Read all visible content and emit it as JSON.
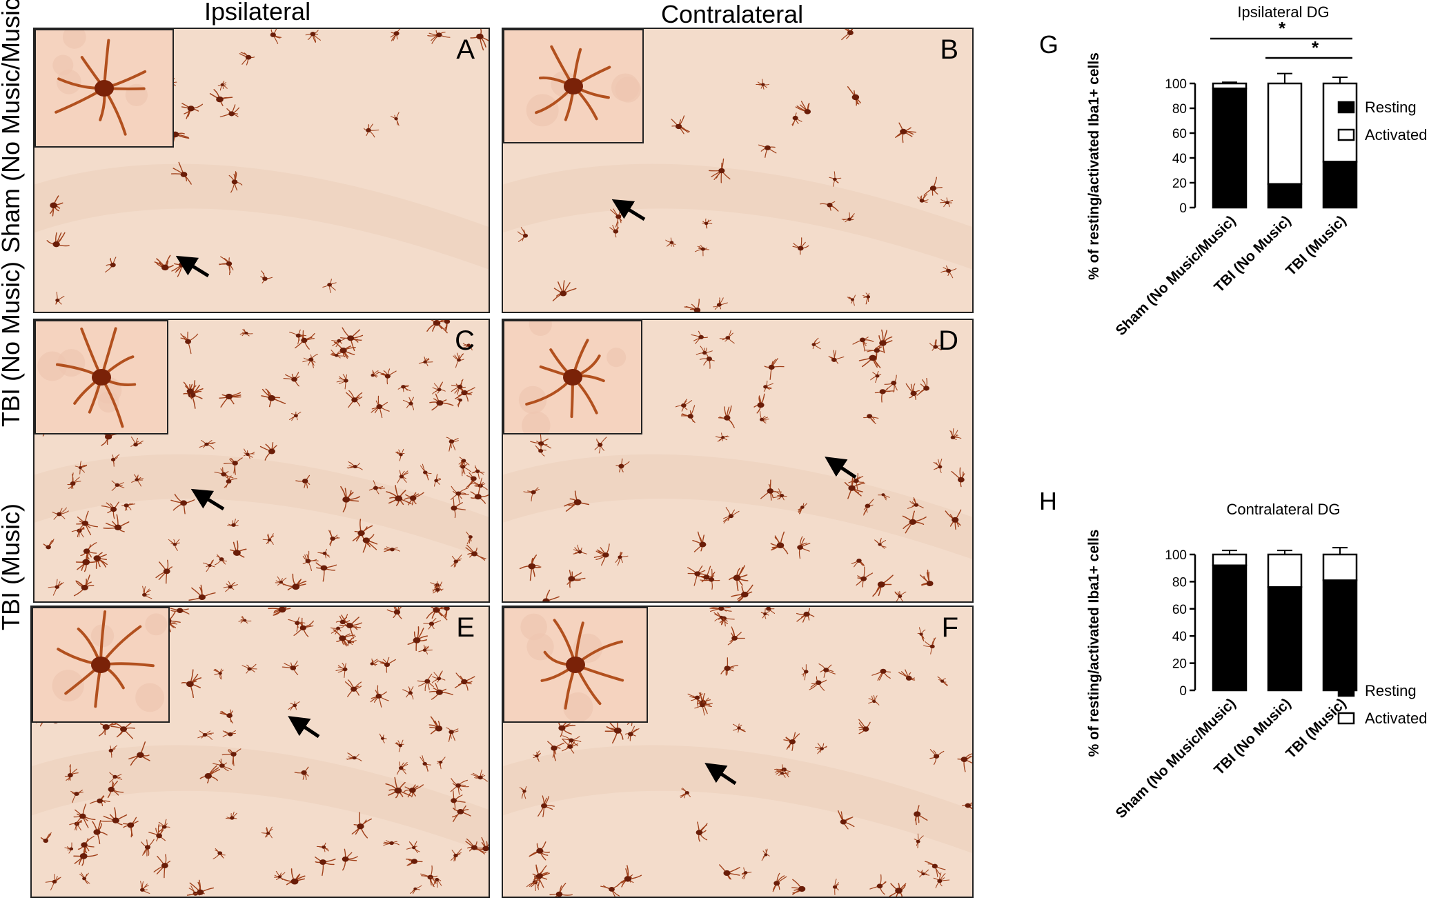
{
  "columns": [
    "Ipsilateral",
    "Contralateral"
  ],
  "rows": [
    "Sham (No Music/Music)",
    "TBI (No Music)",
    "TBI (Music)"
  ],
  "panels": [
    "A",
    "B",
    "C",
    "D",
    "E",
    "F"
  ],
  "colors": {
    "tissue_bg": "#f3dccb",
    "cell": "#a0401a",
    "cell_dark": "#6a1d08",
    "inset_bg": "#f5d3bf"
  },
  "chart_data": [
    {
      "panel": "G",
      "type": "bar",
      "stacked": true,
      "title": "Ipsilateral DG",
      "ylabel": "% of resting/activated Iba1+ cells",
      "categories": [
        "Sham (No Music/Music)",
        "TBI (No Music)",
        "TBI (Music)"
      ],
      "series": [
        {
          "name": "Resting",
          "color": "#000000",
          "values": [
            96,
            19,
            37
          ],
          "errors": [
            2,
            8,
            5
          ]
        },
        {
          "name": "Activated",
          "color": "#ffffff",
          "values": [
            4,
            81,
            63
          ],
          "errors": [
            1,
            8,
            5
          ]
        }
      ],
      "ylim": [
        0,
        100
      ],
      "yticks": [
        0,
        20,
        40,
        60,
        80,
        100
      ],
      "significance": [
        {
          "from": 0,
          "to": 2,
          "label": "*"
        },
        {
          "from": 1,
          "to": 2,
          "label": "*"
        }
      ],
      "legend": "right"
    },
    {
      "panel": "H",
      "type": "bar",
      "stacked": true,
      "title": "Contralateral DG",
      "ylabel": "% of resting/activated Iba1+ cells",
      "categories": [
        "Sham (No Music/Music)",
        "TBI (No Music)",
        "TBI (Music)"
      ],
      "series": [
        {
          "name": "Resting",
          "color": "#000000",
          "values": [
            92,
            76,
            81
          ],
          "errors": [
            2,
            3,
            5
          ]
        },
        {
          "name": "Activated",
          "color": "#ffffff",
          "values": [
            8,
            24,
            19
          ],
          "errors": [
            3,
            3,
            5
          ]
        }
      ],
      "ylim": [
        0,
        100
      ],
      "yticks": [
        0,
        20,
        40,
        60,
        80,
        100
      ],
      "significance": [],
      "legend": "right"
    }
  ]
}
